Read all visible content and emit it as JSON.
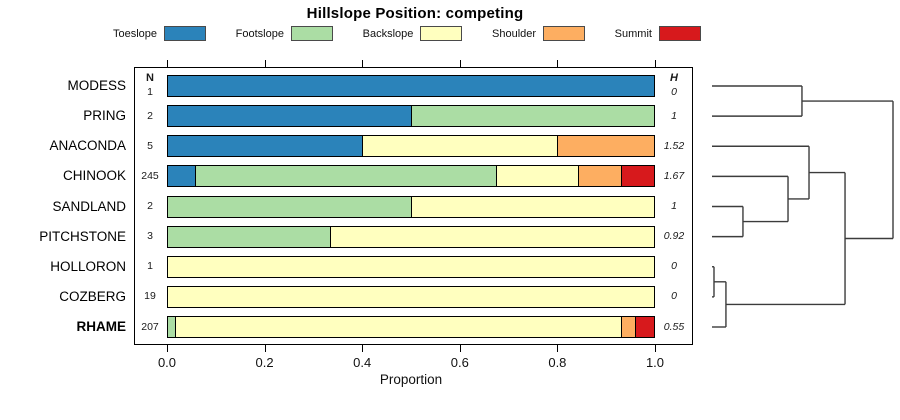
{
  "title": "Hillslope Position: competing",
  "xlabel": "Proportion",
  "columns": {
    "n_header": "N",
    "h_header": "H"
  },
  "legend": [
    {
      "label": "Toeslope",
      "color": "#2B83BA"
    },
    {
      "label": "Footslope",
      "color": "#ABDDA4"
    },
    {
      "label": "Backslope",
      "color": "#FFFFBF"
    },
    {
      "label": "Shoulder",
      "color": "#FDAE61"
    },
    {
      "label": "Summit",
      "color": "#D7191C"
    }
  ],
  "chart_data": {
    "type": "bar",
    "stacked": true,
    "orientation": "horizontal",
    "title": "Hillslope Position: competing",
    "xlabel": "Proportion",
    "xlim": [
      0,
      1
    ],
    "x_ticks": [
      "0.0",
      "0.2",
      "0.4",
      "0.6",
      "0.8",
      "1.0"
    ],
    "legend_position": "top",
    "categories": [
      "MODESS",
      "PRING",
      "ANACONDA",
      "CHINOOK",
      "SANDLAND",
      "PITCHSTONE",
      "HOLLORON",
      "COZBERG",
      "RHAME"
    ],
    "bold_category": "RHAME",
    "n_values": [
      "1",
      "2",
      "5",
      "245",
      "2",
      "3",
      "1",
      "19",
      "207"
    ],
    "h_values": [
      "0",
      "1",
      "1.52",
      "1.67",
      "1",
      "0.92",
      "0",
      "0",
      "0.55"
    ],
    "series": [
      {
        "name": "Toeslope",
        "color": "#2B83BA",
        "values": [
          1,
          0.5,
          0.4,
          0.055,
          0,
          0,
          0,
          0,
          0
        ]
      },
      {
        "name": "Footslope",
        "color": "#ABDDA4",
        "values": [
          0,
          0.5,
          0,
          0.62,
          0.5,
          0.333,
          0,
          0,
          0.015
        ]
      },
      {
        "name": "Backslope",
        "color": "#FFFFBF",
        "values": [
          0,
          0,
          0.4,
          0.168,
          0.5,
          0.667,
          1,
          1,
          0.917
        ]
      },
      {
        "name": "Shoulder",
        "color": "#FDAE61",
        "values": [
          0,
          0,
          0.2,
          0.089,
          0,
          0,
          0,
          0,
          0.029
        ]
      },
      {
        "name": "Summit",
        "color": "#D7191C",
        "values": [
          0,
          0,
          0,
          0.068,
          0,
          0,
          0,
          0,
          0.039
        ]
      }
    ],
    "dendrogram": {
      "leaf_order": [
        "MODESS",
        "PRING",
        "ANACONDA",
        "CHINOOK",
        "SANDLAND",
        "PITCHSTONE",
        "HOLLORON",
        "COZBERG",
        "RHAME"
      ],
      "merges": [
        {
          "a": "HOLLORON",
          "b": "COZBERG",
          "h": 0.011
        },
        {
          "a": "#0",
          "b": "RHAME",
          "h": 0.077
        },
        {
          "a": "SANDLAND",
          "b": "PITCHSTONE",
          "h": 0.171
        },
        {
          "a": "CHINOOK",
          "b": "#2",
          "h": 0.42
        },
        {
          "a": "ANACONDA",
          "b": "#3",
          "h": 0.536
        },
        {
          "a": "MODESS",
          "b": "PRING",
          "h": 0.497
        },
        {
          "a": "#4",
          "b": "#1",
          "h": 0.735
        },
        {
          "a": "#5",
          "b": "#6",
          "h": 1.0
        }
      ]
    }
  }
}
